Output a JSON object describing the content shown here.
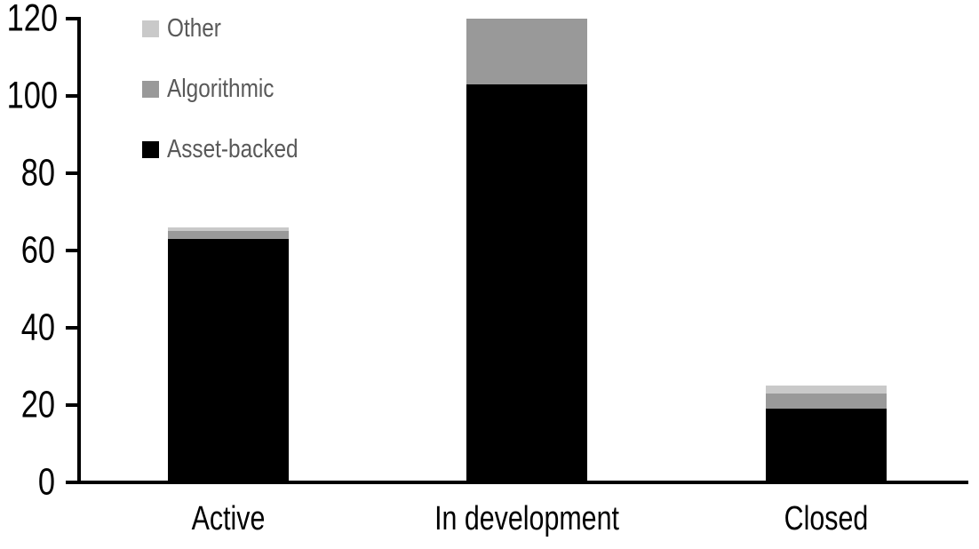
{
  "chart_data": {
    "type": "bar",
    "stacked": true,
    "title": "",
    "xlabel": "",
    "ylabel": "",
    "categories": [
      "Active",
      "In development",
      "Closed"
    ],
    "series": [
      {
        "name": "Asset-backed",
        "color": "#000000",
        "values": [
          63,
          103,
          19
        ]
      },
      {
        "name": "Algorithmic",
        "color": "#999999",
        "values": [
          2,
          17,
          4
        ]
      },
      {
        "name": "Other",
        "color": "#c9c9c9",
        "values": [
          1,
          0,
          2
        ]
      }
    ],
    "totals": [
      66,
      120,
      25
    ],
    "ylim": [
      0,
      120
    ],
    "yticks": [
      0,
      20,
      40,
      60,
      80,
      100,
      120
    ],
    "grid": false,
    "legend": {
      "position": "top-left",
      "items": [
        {
          "label": "Other",
          "color": "#c9c9c9"
        },
        {
          "label": "Algorithmic",
          "color": "#999999"
        },
        {
          "label": "Asset-backed",
          "color": "#000000"
        }
      ]
    }
  },
  "colors": {
    "background": "#ffffff",
    "axis": "#000000",
    "axis_text": "#000000",
    "legend_text": "#595959"
  }
}
